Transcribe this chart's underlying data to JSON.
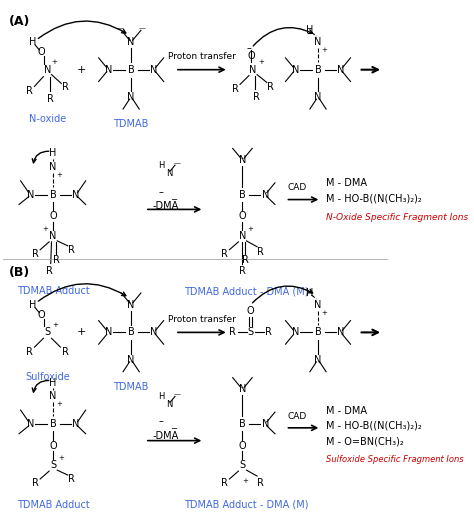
{
  "background_color": "#ffffff",
  "panel_A_label": "(A)",
  "panel_B_label": "(B)",
  "blue_color": "#4169E1",
  "red_color": "#cc0000",
  "black_color": "#000000",
  "labels": {
    "noxide": "N-oxide",
    "tdmab": "TDMAB",
    "proton_transfer": "Proton transfer",
    "dma_loss": "-DMA",
    "cad": "CAD",
    "tdmab_adduct": "TDMAB Adduct",
    "tdmab_adduct_dma": "TDMAB Adduct - DMA (M)",
    "m_dma": "M - DMA",
    "m_hob": "M - HO-B((N(CH₃)₂)₂",
    "noxide_specific": "N-Oxide Specific Fragment Ions",
    "sulfoxide": "Sulfoxide",
    "m_obn": "M - O=BN(CH₃)₂",
    "sulfoxide_specific": "Sulfoxide Specific Fragment Ions"
  }
}
